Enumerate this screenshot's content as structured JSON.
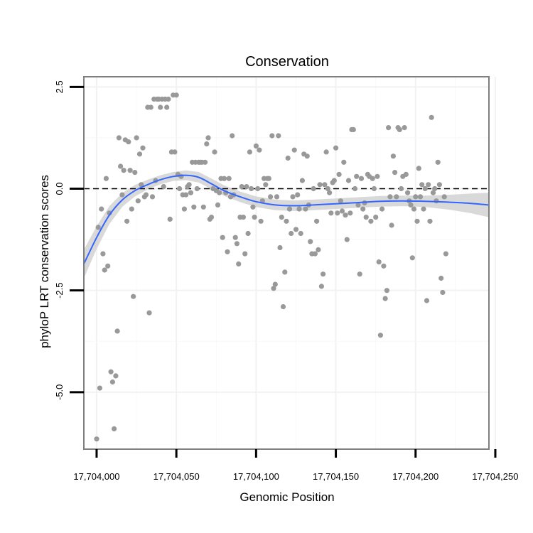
{
  "chart_data": {
    "type": "scatter",
    "title": "Conservation",
    "xlabel": "Genomic Position",
    "ylabel": "phyloP LRT conservation scores",
    "xlim": [
      17703992,
      17704246
    ],
    "ylim": [
      -6.4,
      2.75
    ],
    "x_ticks": [
      17704000,
      17704050,
      17704100,
      17704150,
      17704200,
      17704250
    ],
    "x_tick_labels": [
      "17,704,000",
      "17,704,050",
      "17,704,100",
      "17,704,150",
      "17,704,200",
      "17,704,250"
    ],
    "y_ticks": [
      2.5,
      0.0,
      -2.5,
      -5.0
    ],
    "y_tick_labels": [
      "2.5",
      "0.0",
      "-2.5",
      "-5.0"
    ],
    "reference_line": {
      "y": 0,
      "style": "dashed"
    },
    "grid": true,
    "colors": {
      "points": "#999999",
      "smooth": "#3366ff",
      "band": "#cccccc",
      "frame": "#7f7f7f",
      "grid": "#f2f2f2"
    },
    "points": [
      [
        17704000,
        -6.15
      ],
      [
        17704001,
        -0.95
      ],
      [
        17704002,
        -4.9
      ],
      [
        17704003,
        -0.5
      ],
      [
        17704004,
        -1.6
      ],
      [
        17704005,
        -2.0
      ],
      [
        17704006,
        0.25
      ],
      [
        17704007,
        -1.9
      ],
      [
        17704008,
        -0.6
      ],
      [
        17704009,
        -4.5
      ],
      [
        17704010,
        -4.75
      ],
      [
        17704011,
        -5.9
      ],
      [
        17704012,
        -4.6
      ],
      [
        17704013,
        -3.5
      ],
      [
        17704014,
        1.25
      ],
      [
        17704015,
        0.55
      ],
      [
        17704016,
        -0.15
      ],
      [
        17704017,
        0.45
      ],
      [
        17704018,
        1.2
      ],
      [
        17704019,
        -0.8
      ],
      [
        17704020,
        1.15
      ],
      [
        17704021,
        0.45
      ],
      [
        17704022,
        -0.5
      ],
      [
        17704023,
        -2.65
      ],
      [
        17704024,
        0.4
      ],
      [
        17704025,
        1.25
      ],
      [
        17704026,
        -0.3
      ],
      [
        17704027,
        0.85
      ],
      [
        17704028,
        0.1
      ],
      [
        17704029,
        1.0
      ],
      [
        17704030,
        -0.2
      ],
      [
        17704031,
        -0.15
      ],
      [
        17704032,
        2.0
      ],
      [
        17704033,
        -3.05
      ],
      [
        17704034,
        2.0
      ],
      [
        17704035,
        -0.2
      ],
      [
        17704036,
        2.2
      ],
      [
        17704037,
        0.2
      ],
      [
        17704038,
        2.2
      ],
      [
        17704039,
        2.2
      ],
      [
        17704040,
        2.0
      ],
      [
        17704041,
        2.2
      ],
      [
        17704042,
        0.05
      ],
      [
        17704043,
        2.2
      ],
      [
        17704044,
        2.0
      ],
      [
        17704045,
        2.2
      ],
      [
        17704046,
        -0.75
      ],
      [
        17704047,
        0.9
      ],
      [
        17704048,
        2.3
      ],
      [
        17704049,
        0.9
      ],
      [
        17704050,
        2.3
      ],
      [
        17704051,
        0.35
      ],
      [
        17704052,
        0.0
      ],
      [
        17704053,
        0.3
      ],
      [
        17704054,
        -0.15
      ],
      [
        17704055,
        -0.5
      ],
      [
        17704056,
        -0.15
      ],
      [
        17704057,
        0.05
      ],
      [
        17704058,
        0.1
      ],
      [
        17704059,
        -0.1
      ],
      [
        17704060,
        0.65
      ],
      [
        17704061,
        -0.45
      ],
      [
        17704062,
        0.65
      ],
      [
        17704063,
        0.0
      ],
      [
        17704064,
        0.65
      ],
      [
        17704065,
        0.65
      ],
      [
        17704066,
        0.65
      ],
      [
        17704067,
        -0.45
      ],
      [
        17704068,
        0.65
      ],
      [
        17704069,
        1.1
      ],
      [
        17704070,
        1.25
      ],
      [
        17704071,
        -0.75
      ],
      [
        17704072,
        -0.7
      ],
      [
        17704073,
        0.0
      ],
      [
        17704074,
        0.9
      ],
      [
        17704075,
        -0.05
      ],
      [
        17704076,
        -0.4
      ],
      [
        17704077,
        -0.1
      ],
      [
        17704078,
        0.25
      ],
      [
        17704079,
        -1.2
      ],
      [
        17704080,
        0.25
      ],
      [
        17704081,
        -0.1
      ],
      [
        17704082,
        -1.55
      ],
      [
        17704083,
        0.25
      ],
      [
        17704084,
        -0.2
      ],
      [
        17704085,
        1.3
      ],
      [
        17704086,
        -0.15
      ],
      [
        17704087,
        -1.2
      ],
      [
        17704088,
        -1.35
      ],
      [
        17704089,
        -1.85
      ],
      [
        17704090,
        -0.7
      ],
      [
        17704091,
        0.05
      ],
      [
        17704092,
        -0.7
      ],
      [
        17704093,
        -1.6
      ],
      [
        17704094,
        0.05
      ],
      [
        17704095,
        -1.1
      ],
      [
        17704096,
        0.9
      ],
      [
        17704097,
        0.0
      ],
      [
        17704098,
        -0.45
      ],
      [
        17704099,
        -0.7
      ],
      [
        17704100,
        1.05
      ],
      [
        17704101,
        0.0
      ],
      [
        17704102,
        0.95
      ],
      [
        17704103,
        -0.8
      ],
      [
        17704104,
        -0.3
      ],
      [
        17704105,
        0.25
      ],
      [
        17704106,
        0.1
      ],
      [
        17704107,
        0.25
      ],
      [
        17704108,
        0.25
      ],
      [
        17704109,
        -0.2
      ],
      [
        17704110,
        1.3
      ],
      [
        17704111,
        -2.45
      ],
      [
        17704112,
        -2.35
      ],
      [
        17704113,
        -0.2
      ],
      [
        17704114,
        1.3
      ],
      [
        17704115,
        -1.45
      ],
      [
        17704116,
        -0.7
      ],
      [
        17704117,
        -2.9
      ],
      [
        17704118,
        -2.05
      ],
      [
        17704119,
        -0.8
      ],
      [
        17704120,
        0.75
      ],
      [
        17704121,
        -0.5
      ],
      [
        17704122,
        -1.1
      ],
      [
        17704123,
        -0.2
      ],
      [
        17704124,
        0.95
      ],
      [
        17704125,
        -1.0
      ],
      [
        17704126,
        -0.15
      ],
      [
        17704127,
        -0.5
      ],
      [
        17704128,
        -1.1
      ],
      [
        17704129,
        0.2
      ],
      [
        17704130,
        0.85
      ],
      [
        17704131,
        -0.5
      ],
      [
        17704132,
        0.8
      ],
      [
        17704133,
        -0.4
      ],
      [
        17704134,
        -1.3
      ],
      [
        17704135,
        -1.6
      ],
      [
        17704136,
        0.0
      ],
      [
        17704137,
        -1.6
      ],
      [
        17704138,
        -0.8
      ],
      [
        17704139,
        -1.5
      ],
      [
        17704140,
        0.1
      ],
      [
        17704141,
        -2.4
      ],
      [
        17704142,
        -2.1
      ],
      [
        17704143,
        0.1
      ],
      [
        17704144,
        0.9
      ],
      [
        17704145,
        0.0
      ],
      [
        17704146,
        -0.1
      ],
      [
        17704147,
        -0.6
      ],
      [
        17704148,
        0.15
      ],
      [
        17704149,
        0.2
      ],
      [
        17704150,
        1.0
      ],
      [
        17704151,
        -0.6
      ],
      [
        17704152,
        0.35
      ],
      [
        17704153,
        -0.3
      ],
      [
        17704154,
        -0.55
      ],
      [
        17704155,
        0.65
      ],
      [
        17704156,
        -0.65
      ],
      [
        17704157,
        -1.25
      ],
      [
        17704158,
        0.2
      ],
      [
        17704159,
        -0.6
      ],
      [
        17704160,
        1.45
      ],
      [
        17704161,
        1.45
      ],
      [
        17704162,
        0.0
      ],
      [
        17704163,
        0.3
      ],
      [
        17704164,
        -0.4
      ],
      [
        17704165,
        -2.1
      ],
      [
        17704166,
        0.25
      ],
      [
        17704167,
        -0.5
      ],
      [
        17704168,
        -0.35
      ],
      [
        17704169,
        -0.7
      ],
      [
        17704170,
        0.35
      ],
      [
        17704171,
        0.3
      ],
      [
        17704172,
        -0.8
      ],
      [
        17704173,
        0.25
      ],
      [
        17704174,
        0.0
      ],
      [
        17704175,
        -0.7
      ],
      [
        17704176,
        0.3
      ],
      [
        17704177,
        -1.8
      ],
      [
        17704178,
        -3.6
      ],
      [
        17704179,
        -0.5
      ],
      [
        17704180,
        -1.9
      ],
      [
        17704181,
        -2.7
      ],
      [
        17704182,
        -2.5
      ],
      [
        17704183,
        1.5
      ],
      [
        17704184,
        -0.2
      ],
      [
        17704185,
        -0.9
      ],
      [
        17704186,
        0.8
      ],
      [
        17704187,
        0.4
      ],
      [
        17704188,
        -0.2
      ],
      [
        17704189,
        1.5
      ],
      [
        17704190,
        1.45
      ],
      [
        17704191,
        0.0
      ],
      [
        17704192,
        0.3
      ],
      [
        17704193,
        1.5
      ],
      [
        17704194,
        0.35
      ],
      [
        17704195,
        -0.1
      ],
      [
        17704196,
        -0.3
      ],
      [
        17704197,
        -0.4
      ],
      [
        17704198,
        -1.7
      ],
      [
        17704199,
        -0.5
      ],
      [
        17704200,
        -0.2
      ],
      [
        17704201,
        -0.8
      ],
      [
        17704202,
        0.5
      ],
      [
        17704203,
        -0.2
      ],
      [
        17704204,
        0.1
      ],
      [
        17704205,
        -0.5
      ],
      [
        17704206,
        0.0
      ],
      [
        17704207,
        -2.75
      ],
      [
        17704208,
        0.1
      ],
      [
        17704209,
        -0.8
      ],
      [
        17704210,
        1.75
      ],
      [
        17704211,
        -0.1
      ],
      [
        17704212,
        0.0
      ],
      [
        17704213,
        -0.3
      ],
      [
        17704214,
        0.65
      ],
      [
        17704215,
        0.1
      ],
      [
        17704216,
        -2.2
      ],
      [
        17704217,
        -2.55
      ],
      [
        17704218,
        -0.2
      ],
      [
        17704219,
        -1.6
      ]
    ],
    "smooth": {
      "x": [
        17703992,
        17704000,
        17704008,
        17704016,
        17704024,
        17704032,
        17704040,
        17704048,
        17704056,
        17704064,
        17704072,
        17704080,
        17704090,
        17704100,
        17704112,
        17704124,
        17704136,
        17704150,
        17704164,
        17704178,
        17704192,
        17704206,
        17704220,
        17704234,
        17704246
      ],
      "y": [
        -1.85,
        -1.2,
        -0.65,
        -0.28,
        -0.05,
        0.1,
        0.22,
        0.3,
        0.33,
        0.28,
        0.12,
        -0.05,
        -0.2,
        -0.32,
        -0.4,
        -0.42,
        -0.4,
        -0.37,
        -0.34,
        -0.31,
        -0.3,
        -0.31,
        -0.33,
        -0.36,
        -0.4
      ],
      "se": [
        0.35,
        0.28,
        0.22,
        0.17,
        0.14,
        0.12,
        0.11,
        0.11,
        0.12,
        0.13,
        0.13,
        0.13,
        0.13,
        0.13,
        0.13,
        0.13,
        0.13,
        0.13,
        0.13,
        0.13,
        0.13,
        0.14,
        0.18,
        0.24,
        0.3
      ]
    }
  }
}
